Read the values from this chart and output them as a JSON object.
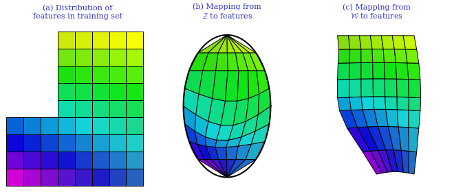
{
  "title_a": "(a) Distribution of\nfeatures in training set",
  "title_b": "(b) Mapping from\n$\\mathcal{Z}$ to features",
  "title_c": "(c) Mapping from\n$\\mathcal{W}$ to features",
  "label_color": "#3333cc",
  "bg_color": "#ffffff",
  "grid_n": 7,
  "grid_color": "black",
  "grid_lw": 0.7
}
